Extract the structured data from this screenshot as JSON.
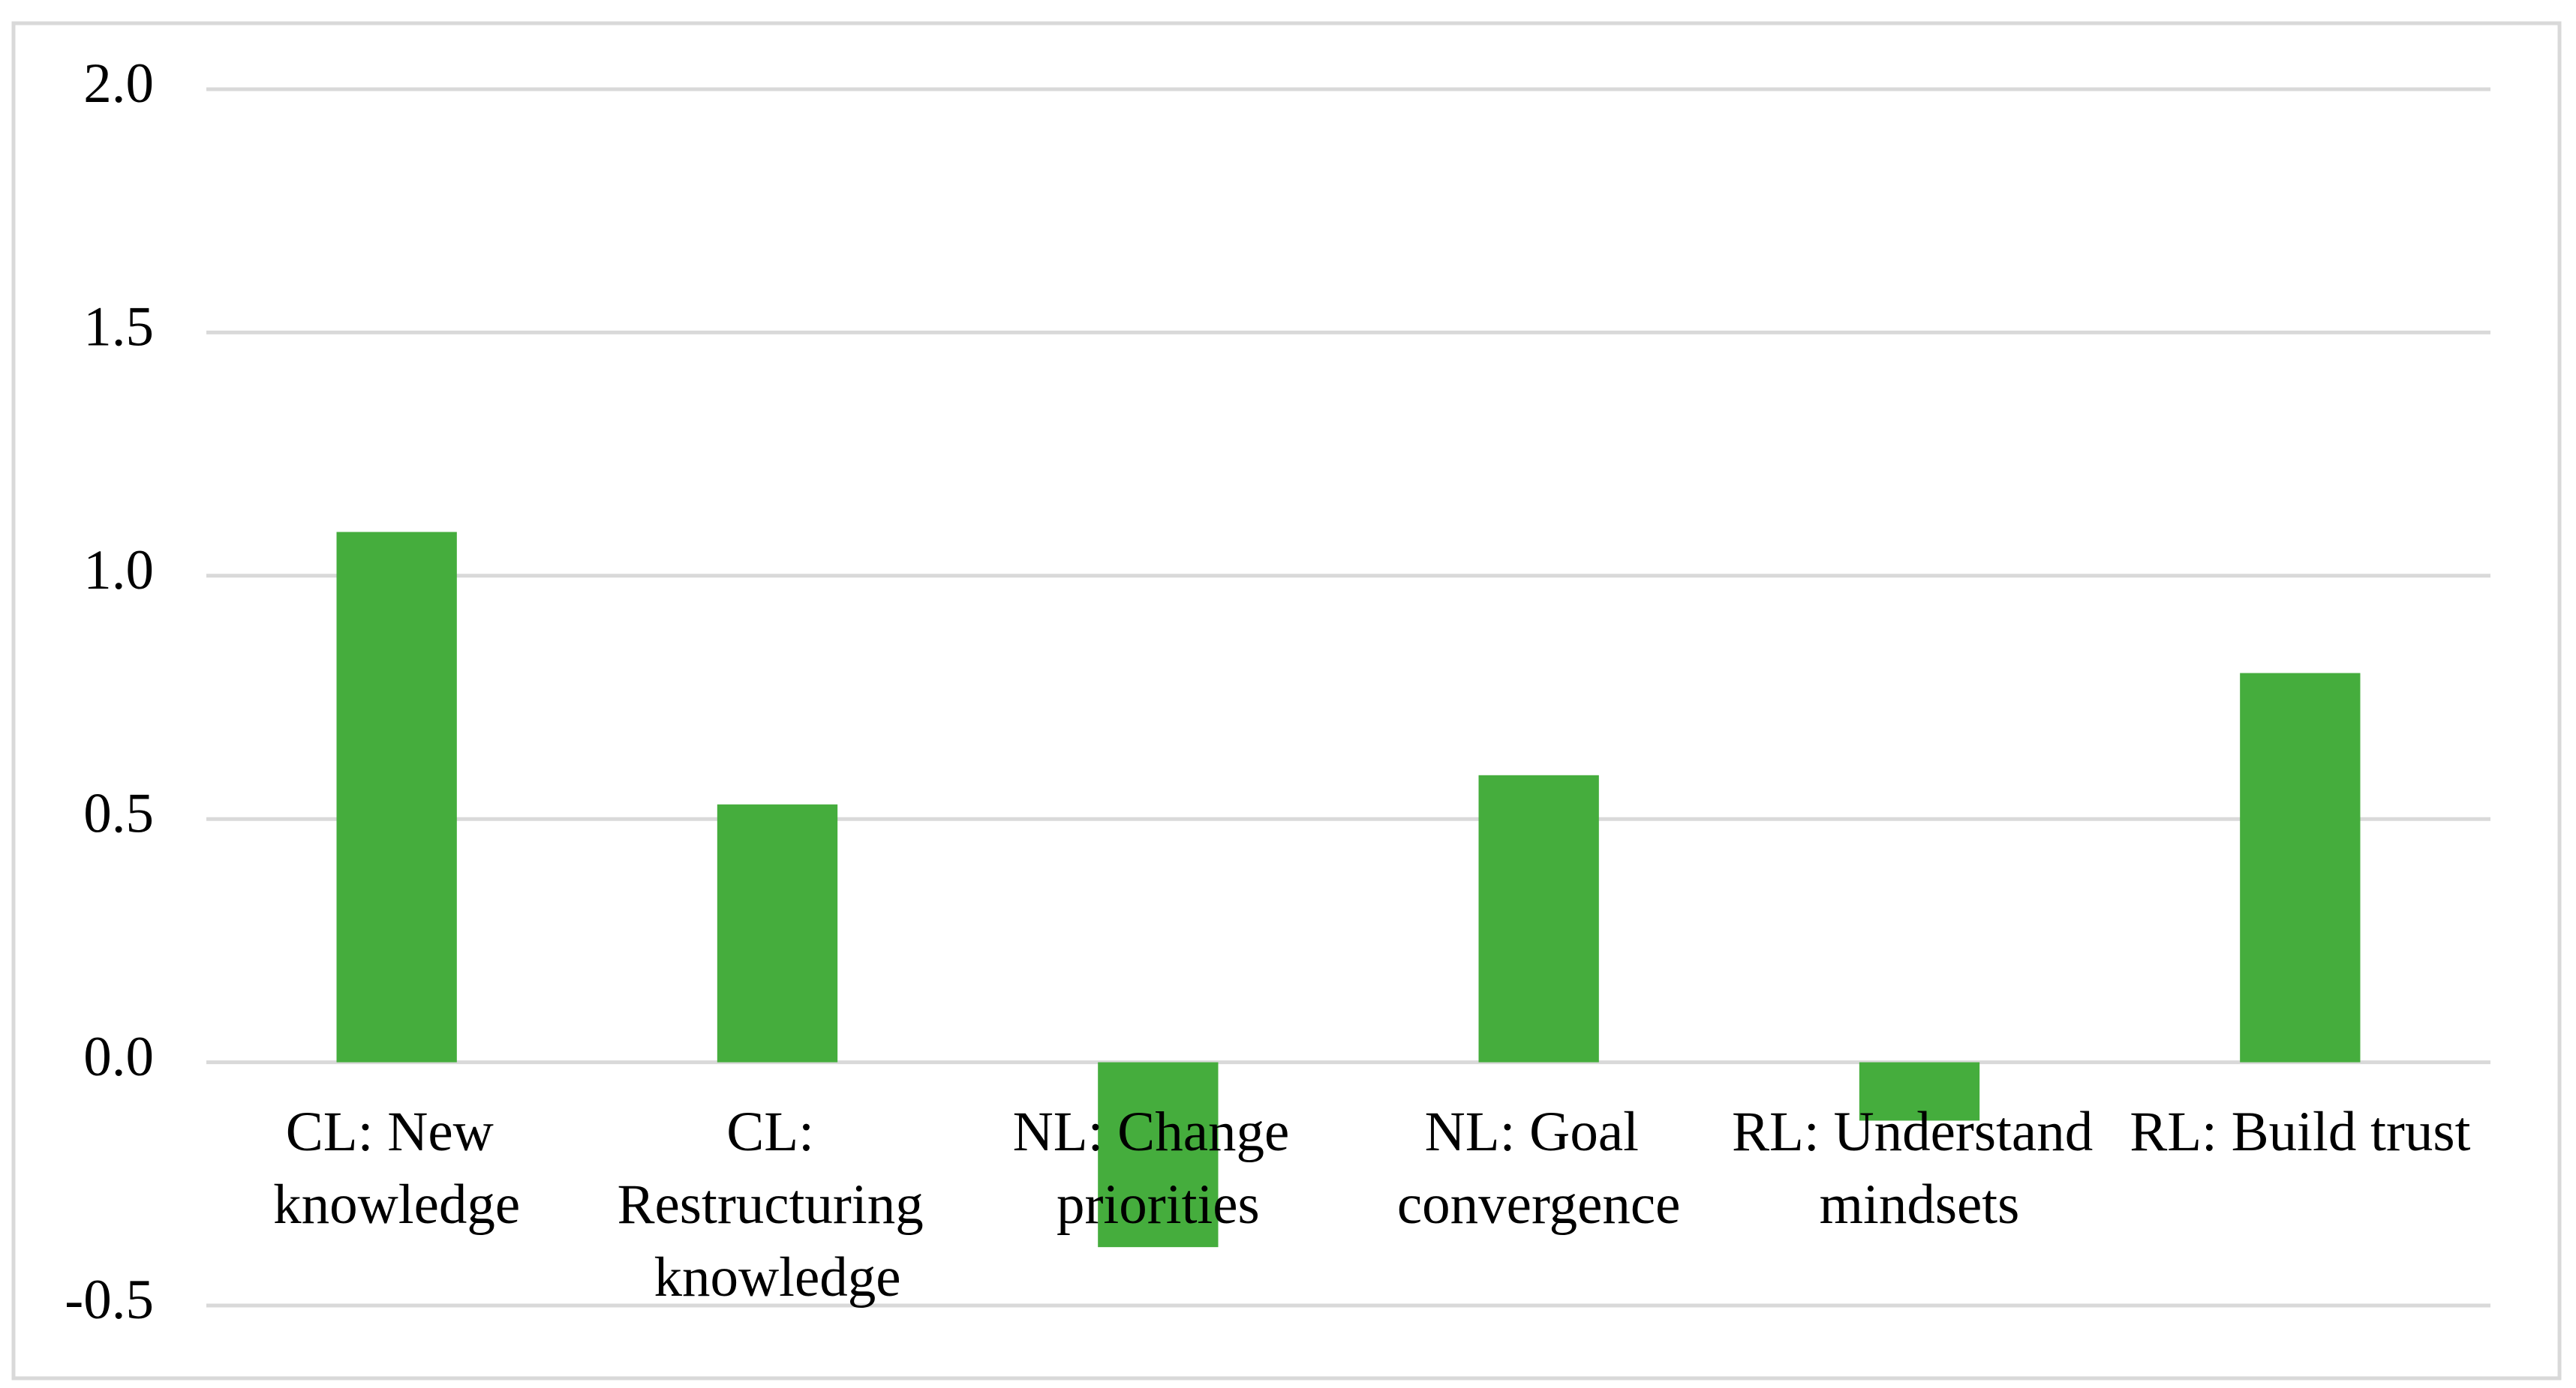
{
  "chart_data": {
    "type": "bar",
    "categories": [
      "CL: New knowledge",
      "CL: Restructuring knowledge",
      "NL: Change priorities",
      "NL: Goal convergence",
      "RL: Understand mindsets",
      "RL: Build trust"
    ],
    "values": [
      1.09,
      0.53,
      -0.38,
      0.59,
      -0.12,
      0.8
    ],
    "color": "#45ad3d",
    "ylim": [
      -0.5,
      2.0
    ],
    "yticks": [
      {
        "value": -0.5,
        "label": "-0.5"
      },
      {
        "value": 0,
        "label": "0.0"
      },
      {
        "value": 0.5,
        "label": "0.5"
      },
      {
        "value": 1,
        "label": "1.0"
      },
      {
        "value": 1.5,
        "label": "1.5"
      },
      {
        "value": 2,
        "label": "2.0"
      }
    ],
    "grid": true
  }
}
